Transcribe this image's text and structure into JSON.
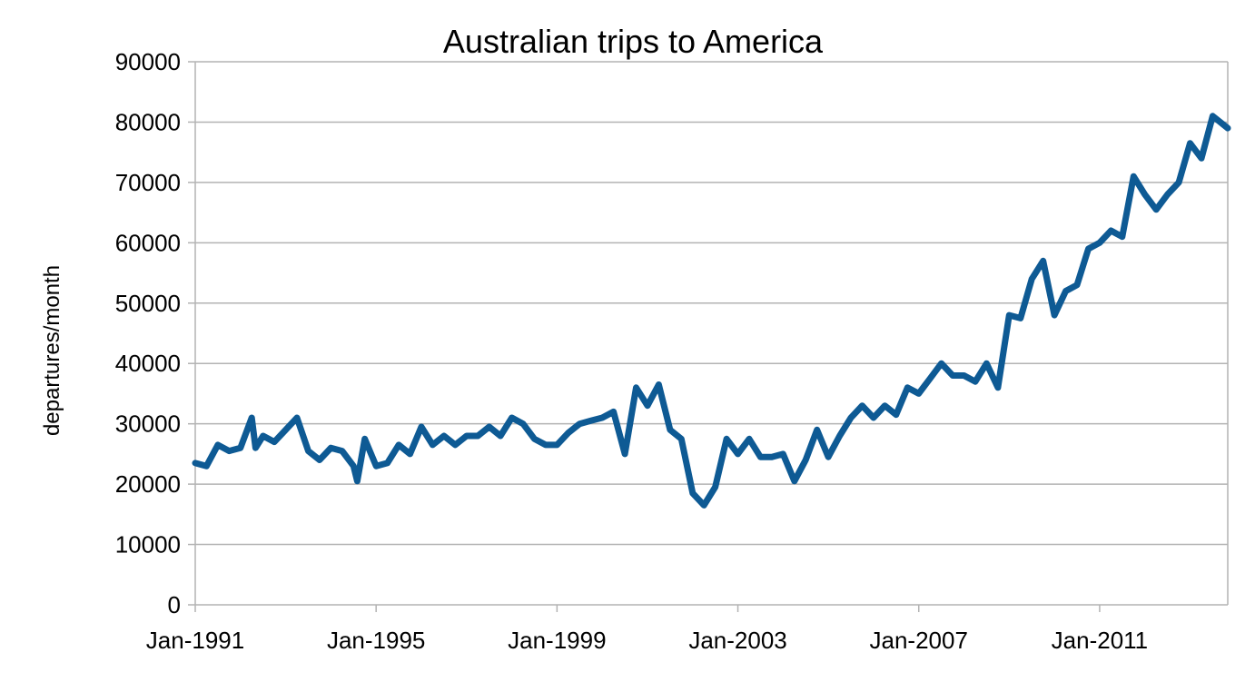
{
  "chart_data": {
    "type": "line",
    "title": "Australian trips to America",
    "xlabel": "",
    "ylabel": "departures/month",
    "ylim": [
      0,
      90000
    ],
    "xlim": [
      "1991-01",
      "2013-11"
    ],
    "grid": true,
    "y_ticks": [
      0,
      10000,
      20000,
      30000,
      40000,
      50000,
      60000,
      70000,
      80000,
      90000
    ],
    "x_ticks": [
      {
        "value": "1991-01",
        "label": "Jan-1991"
      },
      {
        "value": "1995-01",
        "label": "Jan-1995"
      },
      {
        "value": "1999-01",
        "label": "Jan-1999"
      },
      {
        "value": "2003-01",
        "label": "Jan-2003"
      },
      {
        "value": "2007-01",
        "label": "Jan-2007"
      },
      {
        "value": "2011-01",
        "label": "Jan-2011"
      }
    ],
    "colors": {
      "series": "#0e5a94"
    },
    "series": [
      {
        "name": "",
        "x": [
          "1991-01",
          "1991-04",
          "1991-07",
          "1991-10",
          "1992-01",
          "1992-04",
          "1992-05",
          "1992-07",
          "1992-10",
          "1993-01",
          "1993-04",
          "1993-07",
          "1993-10",
          "1994-01",
          "1994-04",
          "1994-07",
          "1994-08",
          "1994-10",
          "1995-01",
          "1995-04",
          "1995-07",
          "1995-10",
          "1996-01",
          "1996-04",
          "1996-07",
          "1996-10",
          "1997-01",
          "1997-04",
          "1997-07",
          "1997-10",
          "1998-01",
          "1998-04",
          "1998-07",
          "1998-10",
          "1999-01",
          "1999-04",
          "1999-07",
          "1999-10",
          "2000-01",
          "2000-04",
          "2000-07",
          "2000-10",
          "2001-01",
          "2001-04",
          "2001-07",
          "2001-10",
          "2002-01",
          "2002-04",
          "2002-07",
          "2002-10",
          "2003-01",
          "2003-04",
          "2003-07",
          "2003-10",
          "2004-01",
          "2004-04",
          "2004-07",
          "2004-10",
          "2005-01",
          "2005-04",
          "2005-07",
          "2005-10",
          "2006-01",
          "2006-04",
          "2006-07",
          "2006-10",
          "2007-01",
          "2007-04",
          "2007-07",
          "2007-10",
          "2008-01",
          "2008-04",
          "2008-07",
          "2008-10",
          "2009-01",
          "2009-04",
          "2009-07",
          "2009-10",
          "2010-01",
          "2010-04",
          "2010-07",
          "2010-10",
          "2011-01",
          "2011-04",
          "2011-07",
          "2011-10",
          "2012-01",
          "2012-04",
          "2012-07",
          "2012-10",
          "2013-01",
          "2013-04",
          "2013-07",
          "2013-11"
        ],
        "values": [
          23500,
          23000,
          26500,
          25500,
          26000,
          31000,
          26000,
          28000,
          27000,
          29000,
          31000,
          25500,
          24000,
          26000,
          25500,
          23000,
          20500,
          27500,
          23000,
          23500,
          26500,
          25000,
          29500,
          26500,
          28000,
          26500,
          28000,
          28000,
          29500,
          28000,
          31000,
          30000,
          27500,
          26500,
          26500,
          28500,
          30000,
          30500,
          31000,
          32000,
          25000,
          36000,
          33000,
          36500,
          29000,
          27500,
          18500,
          16500,
          19500,
          27500,
          25000,
          27500,
          24500,
          24500,
          25000,
          20500,
          24000,
          29000,
          24500,
          28000,
          31000,
          33000,
          31000,
          33000,
          31500,
          36000,
          35000,
          37500,
          40000,
          38000,
          38000,
          37000,
          40000,
          36000,
          48000,
          47500,
          54000,
          57000,
          48000,
          52000,
          53000,
          59000,
          60000,
          62000,
          61000,
          71000,
          68000,
          65500,
          68000,
          70000,
          76500,
          74000,
          81000,
          79000
        ]
      }
    ]
  }
}
